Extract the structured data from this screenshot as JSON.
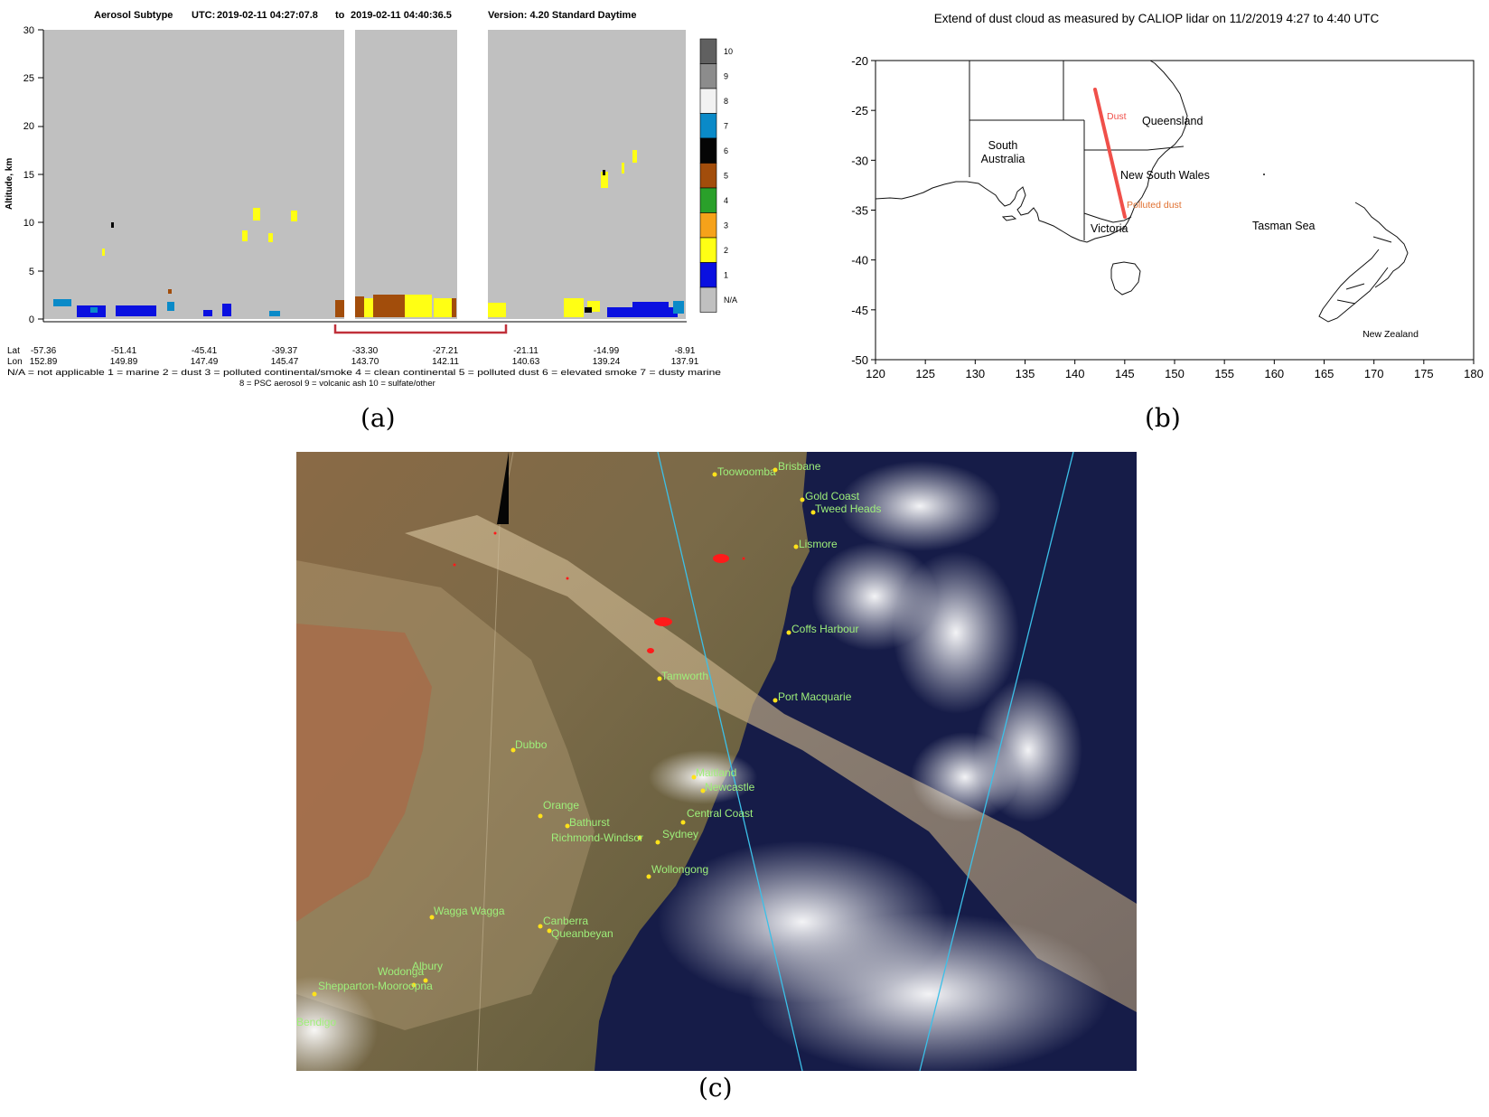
{
  "panel_a": {
    "label": "(a)",
    "header": {
      "title": "Aerosol Subtype",
      "utc_label": "UTC:",
      "start": "2019-02-11  04:27:07.8",
      "to": "to",
      "end": "2019-02-11  04:40:36.5",
      "version": "Version: 4.20  Standard Daytime"
    },
    "ylabel": "Altitude, km",
    "yticks": [
      "30",
      "25",
      "20",
      "15",
      "10",
      "5",
      "0"
    ],
    "lat_label": "Lat",
    "lon_label": "Lon",
    "lats": [
      "-57.36",
      "-51.41",
      "-45.41",
      "-39.37",
      "-33.30",
      "-27.21",
      "-21.11",
      "-14.99",
      "-8.91"
    ],
    "lons": [
      "152.89",
      "149.89",
      "147.49",
      "145.47",
      "143.70",
      "142.11",
      "140.63",
      "139.24",
      "137.91"
    ],
    "colorbar": [
      {
        "label": "10",
        "color": "#606060"
      },
      {
        "label": "9",
        "color": "#8c8c8c"
      },
      {
        "label": "8",
        "color": "#f2f2f2"
      },
      {
        "label": "7",
        "color": "#0a8ac8"
      },
      {
        "label": "6",
        "color": "#050505"
      },
      {
        "label": "5",
        "color": "#a24d0b"
      },
      {
        "label": "4",
        "color": "#2aa02a"
      },
      {
        "label": "3",
        "color": "#f6a21a"
      },
      {
        "label": "2",
        "color": "#ffff14"
      },
      {
        "label": "1",
        "color": "#0a10e0"
      },
      {
        "label": "N/A",
        "color": "#c0c0c0"
      }
    ],
    "legend_line1": "N/A = not applicable       1 = marine       2 = dust      3 = polluted continental/smoke      4 = clean continental      5 = polluted dust      6 = elevated smoke      7 = dusty marine",
    "legend_line2": "8 = PSC aerosol     9 = volcanic ash     10 = sulfate/other"
  },
  "panel_b": {
    "label": "(b)",
    "title": "Extend of dust cloud as measured by CALIOP lidar on 11/2/2019 4:27 to 4:40 UTC",
    "xticks": [
      "120",
      "125",
      "130",
      "135",
      "140",
      "145",
      "150",
      "155",
      "160",
      "165",
      "170",
      "175",
      "180"
    ],
    "yticks": [
      "-20",
      "-25",
      "-30",
      "-35",
      "-40",
      "-45",
      "-50"
    ],
    "places": {
      "south_australia_1": "South",
      "south_australia_2": "Australia",
      "queensland": "Queensland",
      "nsw": "New South Wales",
      "victoria": "Victoria",
      "tasman": "Tasman Sea",
      "nz": "New Zealand"
    },
    "dust_label": "Dust",
    "polluted_label": "Polluted dust",
    "track": {
      "color": "#f0504a"
    }
  },
  "panel_c": {
    "label": "(c)",
    "cities": [
      "Toowoomba",
      "Brisbane",
      "Gold Coast",
      "Tweed Heads",
      "Lismore",
      "Coffs Harbour",
      "Tamworth",
      "Port Macquarie",
      "Dubbo",
      "Maitland",
      "Newcastle",
      "Orange",
      "Central Coast",
      "Bathurst",
      "Richmond-Windsor",
      "Sydney",
      "Wollongong",
      "Wagga Wagga",
      "Canberra",
      "Queanbeyan",
      "Wodonga",
      "Albury",
      "Shepparton-Mooroopna",
      "Bendigo"
    ],
    "colors": {
      "city_label": "#9ef07a",
      "city_dot": "#ffe21a",
      "track": "#3cc0e8",
      "fire": "#ff1a1a"
    }
  }
}
